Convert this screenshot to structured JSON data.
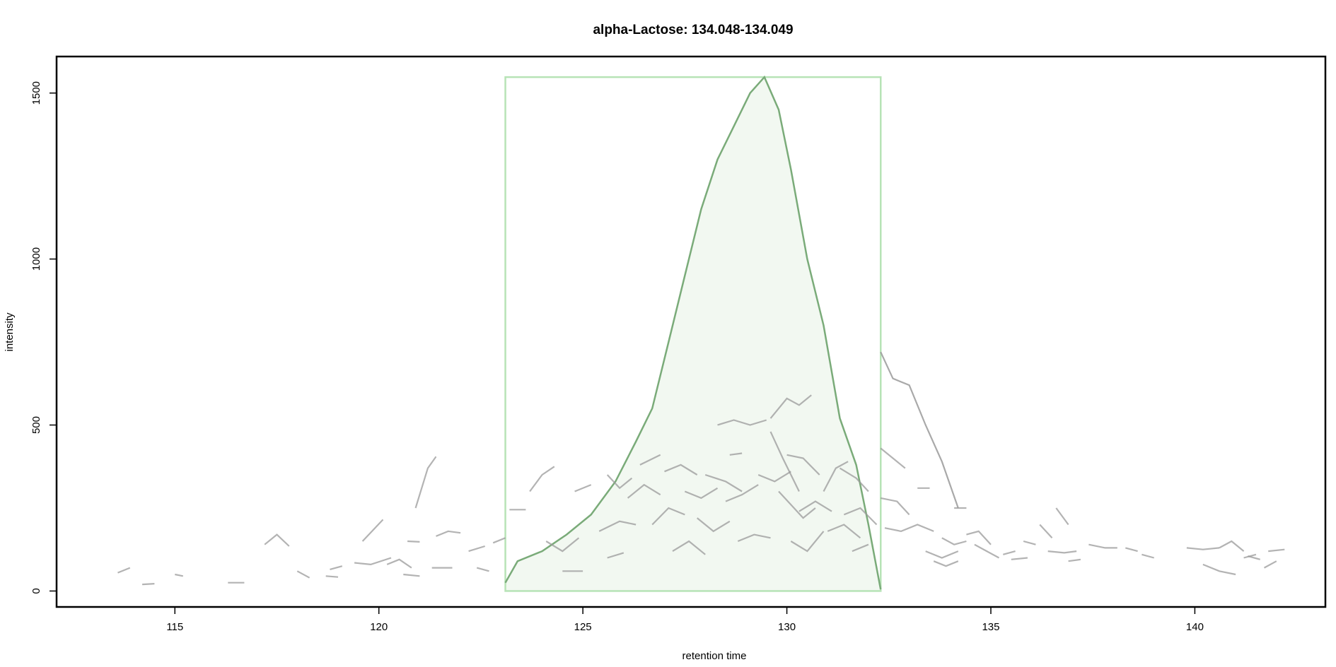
{
  "chart_data": {
    "type": "line",
    "title": "alpha-Lactose: 134.048-134.049",
    "xlabel": "retention time",
    "ylabel": "intensity",
    "xlim": [
      112.1,
      143.2
    ],
    "ylim": [
      -48,
      1610
    ],
    "x_ticks": [
      115,
      120,
      125,
      130,
      135,
      140
    ],
    "y_ticks": [
      0,
      500,
      1000,
      1500
    ],
    "grid": false,
    "legend": "none",
    "colors": {
      "peak_line": "#7aab79",
      "peak_fill": "#f2f8f1",
      "peak_box": "#b7e3b6",
      "noise": "#9a9a9a",
      "frame": "#000000"
    },
    "peak_region": {
      "rt_min": 123.1,
      "rt_max": 132.3,
      "intensity_max": 1548
    },
    "series": [
      {
        "role": "integrated-peak",
        "x": [
          123.1,
          123.4,
          124.0,
          124.6,
          125.2,
          125.8,
          126.3,
          126.7,
          127.1,
          127.5,
          127.9,
          128.3,
          128.7,
          129.1,
          129.45,
          129.8,
          130.1,
          130.5,
          130.9,
          131.3,
          131.7,
          132.0,
          132.3
        ],
        "values": [
          25,
          90,
          120,
          170,
          230,
          330,
          450,
          550,
          750,
          950,
          1150,
          1300,
          1400,
          1500,
          1548,
          1450,
          1270,
          1000,
          800,
          520,
          380,
          200,
          5
        ]
      },
      {
        "role": "tailing-trace",
        "x": [
          132.3,
          132.6,
          133.0,
          133.4,
          133.8,
          134.2
        ],
        "values": [
          720,
          640,
          620,
          500,
          390,
          250
        ]
      }
    ],
    "noise_segments": [
      [
        [
          113.6,
          55
        ],
        [
          113.9,
          70
        ]
      ],
      [
        [
          114.2,
          20
        ],
        [
          114.5,
          22
        ]
      ],
      [
        [
          115.0,
          50
        ],
        [
          115.2,
          45
        ]
      ],
      [
        [
          116.3,
          25
        ],
        [
          116.7,
          25
        ]
      ],
      [
        [
          117.2,
          140
        ],
        [
          117.5,
          170
        ],
        [
          117.8,
          135
        ]
      ],
      [
        [
          118.0,
          60
        ],
        [
          118.3,
          40
        ]
      ],
      [
        [
          118.7,
          45
        ],
        [
          119.0,
          42
        ]
      ],
      [
        [
          118.8,
          65
        ],
        [
          119.1,
          75
        ]
      ],
      [
        [
          119.6,
          150
        ],
        [
          120.1,
          215
        ]
      ],
      [
        [
          120.2,
          80
        ],
        [
          120.5,
          95
        ],
        [
          120.8,
          70
        ]
      ],
      [
        [
          119.4,
          85
        ],
        [
          119.8,
          80
        ],
        [
          120.3,
          100
        ]
      ],
      [
        [
          120.6,
          50
        ],
        [
          121.0,
          45
        ]
      ],
      [
        [
          120.7,
          150
        ],
        [
          121.0,
          148
        ]
      ],
      [
        [
          120.9,
          250
        ],
        [
          121.2,
          370
        ],
        [
          121.4,
          405
        ]
      ],
      [
        [
          121.4,
          165
        ],
        [
          121.7,
          180
        ],
        [
          122.0,
          175
        ]
      ],
      [
        [
          121.3,
          70
        ],
        [
          121.8,
          70
        ]
      ],
      [
        [
          122.2,
          120
        ],
        [
          122.6,
          135
        ]
      ],
      [
        [
          122.4,
          70
        ],
        [
          122.7,
          60
        ]
      ],
      [
        [
          122.8,
          145
        ],
        [
          123.1,
          160
        ]
      ],
      [
        [
          123.2,
          245
        ],
        [
          123.6,
          245
        ]
      ],
      [
        [
          123.7,
          300
        ],
        [
          124.0,
          350
        ],
        [
          124.3,
          375
        ]
      ],
      [
        [
          124.1,
          150
        ],
        [
          124.5,
          120
        ],
        [
          124.9,
          160
        ]
      ],
      [
        [
          124.5,
          60
        ],
        [
          125.0,
          60
        ]
      ],
      [
        [
          124.8,
          300
        ],
        [
          125.2,
          320
        ]
      ],
      [
        [
          125.6,
          350
        ],
        [
          125.9,
          310
        ],
        [
          126.2,
          340
        ]
      ],
      [
        [
          125.4,
          180
        ],
        [
          125.9,
          210
        ],
        [
          126.3,
          200
        ]
      ],
      [
        [
          125.6,
          100
        ],
        [
          126.0,
          115
        ]
      ],
      [
        [
          126.1,
          280
        ],
        [
          126.5,
          320
        ],
        [
          126.9,
          290
        ]
      ],
      [
        [
          126.4,
          380
        ],
        [
          126.9,
          410
        ]
      ],
      [
        [
          126.7,
          200
        ],
        [
          127.1,
          250
        ],
        [
          127.5,
          230
        ]
      ],
      [
        [
          127.0,
          360
        ],
        [
          127.4,
          380
        ],
        [
          127.8,
          350
        ]
      ],
      [
        [
          127.2,
          120
        ],
        [
          127.6,
          150
        ],
        [
          128.0,
          110
        ]
      ],
      [
        [
          127.5,
          300
        ],
        [
          127.9,
          280
        ],
        [
          128.3,
          310
        ]
      ],
      [
        [
          127.8,
          220
        ],
        [
          128.2,
          180
        ],
        [
          128.6,
          210
        ]
      ],
      [
        [
          128.0,
          350
        ],
        [
          128.5,
          330
        ],
        [
          128.9,
          300
        ]
      ],
      [
        [
          128.3,
          500
        ],
        [
          128.7,
          515
        ],
        [
          129.1,
          500
        ],
        [
          129.5,
          515
        ]
      ],
      [
        [
          128.5,
          270
        ],
        [
          128.9,
          290
        ],
        [
          129.3,
          320
        ]
      ],
      [
        [
          128.6,
          410
        ],
        [
          128.9,
          415
        ]
      ],
      [
        [
          128.8,
          150
        ],
        [
          129.2,
          170
        ],
        [
          129.6,
          160
        ]
      ],
      [
        [
          129.3,
          350
        ],
        [
          129.7,
          330
        ],
        [
          130.1,
          360
        ]
      ],
      [
        [
          129.6,
          520
        ],
        [
          130.0,
          580
        ],
        [
          130.3,
          560
        ],
        [
          130.6,
          590
        ]
      ],
      [
        [
          129.6,
          480
        ],
        [
          129.9,
          400
        ],
        [
          130.3,
          300
        ]
      ],
      [
        [
          129.8,
          300
        ],
        [
          130.1,
          260
        ],
        [
          130.4,
          220
        ],
        [
          130.7,
          250
        ]
      ],
      [
        [
          130.0,
          410
        ],
        [
          130.4,
          400
        ],
        [
          130.8,
          350
        ]
      ],
      [
        [
          130.1,
          150
        ],
        [
          130.5,
          120
        ],
        [
          130.9,
          180
        ]
      ],
      [
        [
          130.3,
          240
        ],
        [
          130.7,
          270
        ],
        [
          131.1,
          240
        ]
      ],
      [
        [
          130.9,
          300
        ],
        [
          131.2,
          370
        ],
        [
          131.5,
          390
        ]
      ],
      [
        [
          131.0,
          180
        ],
        [
          131.4,
          200
        ],
        [
          131.8,
          160
        ]
      ],
      [
        [
          131.3,
          370
        ],
        [
          131.7,
          340
        ],
        [
          132.0,
          300
        ]
      ],
      [
        [
          131.4,
          230
        ],
        [
          131.8,
          250
        ],
        [
          132.2,
          200
        ]
      ],
      [
        [
          131.6,
          120
        ],
        [
          132.0,
          140
        ]
      ],
      [
        [
          132.3,
          430
        ],
        [
          132.6,
          400
        ],
        [
          132.9,
          370
        ]
      ],
      [
        [
          132.3,
          280
        ],
        [
          132.7,
          270
        ],
        [
          133.0,
          230
        ]
      ],
      [
        [
          132.4,
          190
        ],
        [
          132.8,
          180
        ],
        [
          133.2,
          200
        ],
        [
          133.6,
          180
        ]
      ],
      [
        [
          133.2,
          310
        ],
        [
          133.5,
          310
        ]
      ],
      [
        [
          133.4,
          120
        ],
        [
          133.8,
          100
        ],
        [
          134.2,
          120
        ]
      ],
      [
        [
          133.6,
          90
        ],
        [
          133.9,
          75
        ],
        [
          134.2,
          90
        ]
      ],
      [
        [
          133.8,
          160
        ],
        [
          134.1,
          140
        ],
        [
          134.4,
          150
        ]
      ],
      [
        [
          134.1,
          250
        ],
        [
          134.4,
          250
        ]
      ],
      [
        [
          134.4,
          170
        ],
        [
          134.7,
          180
        ],
        [
          135.0,
          140
        ]
      ],
      [
        [
          134.6,
          140
        ],
        [
          134.9,
          120
        ],
        [
          135.2,
          100
        ]
      ],
      [
        [
          135.3,
          110
        ],
        [
          135.6,
          120
        ]
      ],
      [
        [
          135.5,
          95
        ],
        [
          135.9,
          100
        ]
      ],
      [
        [
          135.8,
          150
        ],
        [
          136.1,
          140
        ]
      ],
      [
        [
          136.2,
          200
        ],
        [
          136.5,
          160
        ]
      ],
      [
        [
          136.4,
          120
        ],
        [
          136.8,
          115
        ],
        [
          137.1,
          120
        ]
      ],
      [
        [
          136.6,
          250
        ],
        [
          136.9,
          200
        ]
      ],
      [
        [
          136.9,
          90
        ],
        [
          137.2,
          95
        ]
      ],
      [
        [
          137.4,
          140
        ],
        [
          137.8,
          130
        ],
        [
          138.1,
          130
        ]
      ],
      [
        [
          138.3,
          130
        ],
        [
          138.6,
          120
        ]
      ],
      [
        [
          138.7,
          110
        ],
        [
          139.0,
          100
        ]
      ],
      [
        [
          139.8,
          130
        ],
        [
          140.2,
          125
        ],
        [
          140.6,
          130
        ]
      ],
      [
        [
          140.2,
          80
        ],
        [
          140.6,
          60
        ],
        [
          141.0,
          50
        ]
      ],
      [
        [
          140.6,
          130
        ],
        [
          140.9,
          150
        ],
        [
          141.2,
          120
        ]
      ],
      [
        [
          141.2,
          100
        ],
        [
          141.5,
          110
        ]
      ],
      [
        [
          141.3,
          105
        ],
        [
          141.6,
          95
        ]
      ],
      [
        [
          141.7,
          70
        ],
        [
          142.0,
          90
        ]
      ],
      [
        [
          141.8,
          120
        ],
        [
          142.2,
          125
        ]
      ]
    ]
  }
}
